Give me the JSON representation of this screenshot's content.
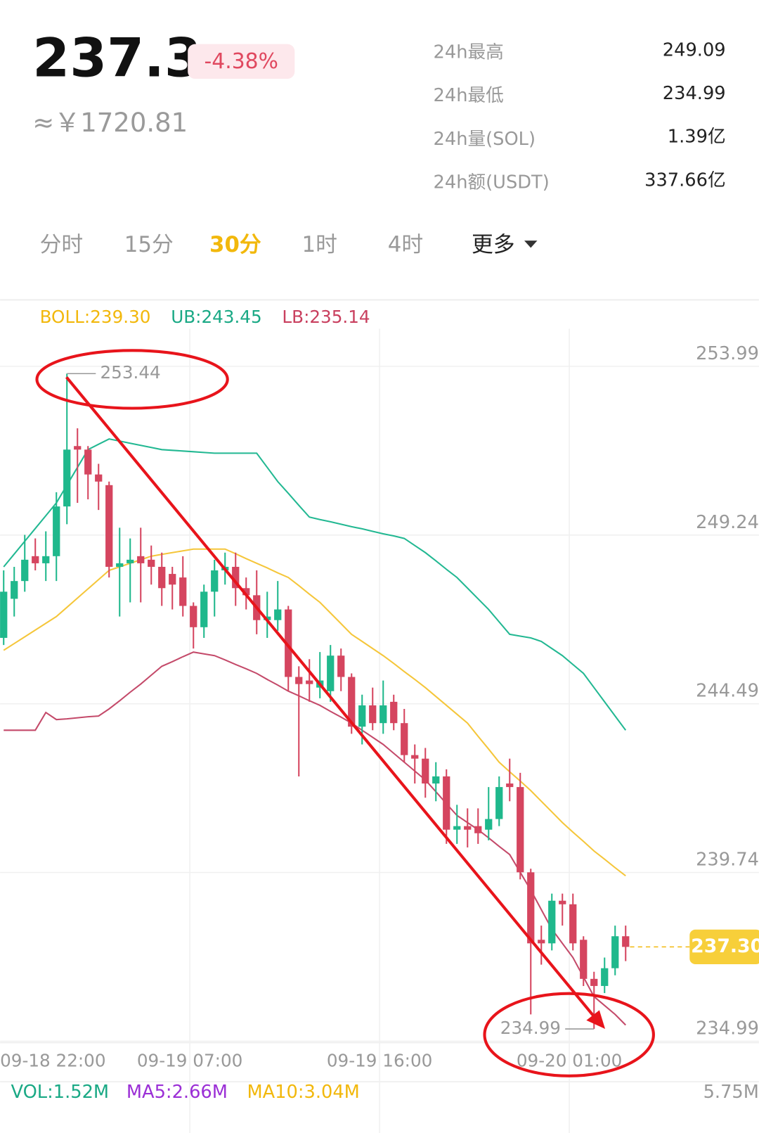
{
  "header": {
    "price": "237.3",
    "change": "-4.38%",
    "cny": "≈￥1720.81"
  },
  "stats": [
    {
      "label": "24h最高",
      "value": "249.09"
    },
    {
      "label": "24h最低",
      "value": "234.99"
    },
    {
      "label": "24h量(SOL)",
      "value": "1.39亿"
    },
    {
      "label": "24h额(USDT)",
      "value": "337.66亿"
    }
  ],
  "tabs": [
    "分时",
    "15分",
    "30分",
    "1时",
    "4时",
    "更多"
  ],
  "chart_data": {
    "type": "candlestick",
    "categories": [
      "09-18 22:00",
      null,
      null,
      null,
      null,
      null,
      null,
      null,
      null,
      null,
      null,
      null,
      null,
      null,
      null,
      null,
      null,
      null,
      "09-19 07:00",
      null,
      null,
      null,
      null,
      null,
      null,
      null,
      null,
      null,
      null,
      null,
      null,
      null,
      null,
      null,
      null,
      null,
      "09-19 16:00",
      null,
      null,
      null,
      null,
      null,
      null,
      null,
      null,
      null,
      null,
      null,
      null,
      null,
      null,
      null,
      null,
      null,
      "09-20 01:00",
      null,
      null,
      null,
      null,
      null
    ],
    "open": [
      246.0,
      247.1,
      247.6,
      248.3,
      248.1,
      248.3,
      249.7,
      251.4,
      251.3,
      250.6,
      250.3,
      248.0,
      248.1,
      248.3,
      248.2,
      248.0,
      247.8,
      247.7,
      246.9,
      246.3,
      247.3,
      247.9,
      248.0,
      247.4,
      247.2,
      246.5,
      246.5,
      246.8,
      244.9,
      244.8,
      244.6,
      244.5,
      245.5,
      244.9,
      243.5,
      244.1,
      243.6,
      244.2,
      243.6,
      242.7,
      242.6,
      241.9,
      242.1,
      240.6,
      240.7,
      240.7,
      240.6,
      240.9,
      241.9,
      241.8,
      239.4,
      237.5,
      237.4,
      238.6,
      238.5,
      237.5,
      236.4,
      236.2,
      236.7,
      237.6
    ],
    "high": [
      247.9,
      248.0,
      248.9,
      248.8,
      249.0,
      250.1,
      253.44,
      251.9,
      251.4,
      250.9,
      250.4,
      249.1,
      248.8,
      249.1,
      248.6,
      248.4,
      248.0,
      248.3,
      247.0,
      247.5,
      248.2,
      248.4,
      248.4,
      247.7,
      247.9,
      247.3,
      247.6,
      246.9,
      245.2,
      245.4,
      245.6,
      245.8,
      245.7,
      245.0,
      244.4,
      244.6,
      244.8,
      244.4,
      244.0,
      243.0,
      242.9,
      242.5,
      242.3,
      241.3,
      241.2,
      241.2,
      241.8,
      242.1,
      242.6,
      242.2,
      239.5,
      237.9,
      238.8,
      238.8,
      238.8,
      237.6,
      236.6,
      237.0,
      237.9,
      237.9
    ],
    "low": [
      245.8,
      246.6,
      247.3,
      247.9,
      247.6,
      247.6,
      249.2,
      249.8,
      249.9,
      249.6,
      247.7,
      246.6,
      247.0,
      247.0,
      247.5,
      246.9,
      246.8,
      246.6,
      245.7,
      246.0,
      246.6,
      247.5,
      246.9,
      246.8,
      246.1,
      246.0,
      246.2,
      244.5,
      242.1,
      244.2,
      244.3,
      244.2,
      244.5,
      243.3,
      243.0,
      243.4,
      243.3,
      243.4,
      242.5,
      241.9,
      241.5,
      241.4,
      240.2,
      240.2,
      240.1,
      240.2,
      240.3,
      240.7,
      241.4,
      239.2,
      235.4,
      236.8,
      237.2,
      237.9,
      237.2,
      236.2,
      234.99,
      236.0,
      236.5,
      236.9
    ],
    "close": [
      247.3,
      247.6,
      248.2,
      248.1,
      248.3,
      249.7,
      251.3,
      251.3,
      250.6,
      250.4,
      248.0,
      248.1,
      248.2,
      248.1,
      248.0,
      247.4,
      247.5,
      246.9,
      246.3,
      247.3,
      247.9,
      248.0,
      247.4,
      247.2,
      246.5,
      246.6,
      246.8,
      244.9,
      244.7,
      244.7,
      244.8,
      245.5,
      244.9,
      243.5,
      244.1,
      243.6,
      244.1,
      243.6,
      242.7,
      242.6,
      241.9,
      242.1,
      240.6,
      240.7,
      240.6,
      240.5,
      240.9,
      241.8,
      241.8,
      239.4,
      237.4,
      237.4,
      238.6,
      238.5,
      237.4,
      236.4,
      236.2,
      236.7,
      237.6,
      237.3
    ],
    "up_color": "#1fb88c",
    "down_color": "#d5455f",
    "indicators": [
      {
        "label": "BOLL:239.30",
        "color": "#f2b80c",
        "line_color": "#f5c63a",
        "values": [
          245.65,
          245.84,
          246.03,
          246.22,
          246.41,
          246.6,
          246.86,
          247.12,
          247.38,
          247.64,
          247.9,
          248.0,
          248.1,
          248.2,
          248.3,
          248.35,
          248.4,
          248.45,
          248.5,
          248.5,
          248.5,
          248.5,
          248.37,
          248.23,
          248.1,
          247.97,
          247.83,
          247.7,
          247.47,
          247.23,
          247.0,
          246.7,
          246.4,
          246.1,
          245.9,
          245.7,
          245.5,
          245.28,
          245.05,
          244.83,
          244.6,
          244.35,
          244.1,
          243.85,
          243.6,
          243.23,
          242.87,
          242.5,
          242.23,
          241.97,
          241.7,
          241.4,
          241.1,
          240.8,
          240.53,
          240.27,
          240.0,
          239.77,
          239.53,
          239.3
        ]
      },
      {
        "label": "UB:243.45",
        "color": "#1aa985",
        "line_color": "#22b892",
        "values": [
          248.0,
          248.36,
          248.72,
          249.08,
          249.44,
          249.8,
          250.3,
          250.8,
          251.3,
          251.45,
          251.6,
          251.54,
          251.48,
          251.42,
          251.36,
          251.3,
          251.28,
          251.26,
          251.24,
          251.22,
          251.2,
          251.2,
          251.2,
          251.2,
          251.2,
          250.8,
          250.4,
          250.07,
          249.73,
          249.4,
          249.33,
          249.27,
          249.2,
          249.13,
          249.07,
          249.0,
          248.93,
          248.87,
          248.8,
          248.6,
          248.4,
          248.17,
          247.93,
          247.7,
          247.4,
          247.1,
          246.8,
          246.45,
          246.1,
          246.05,
          246.0,
          245.9,
          245.7,
          245.5,
          245.25,
          245.0,
          244.6,
          244.2,
          243.8,
          243.4
        ]
      },
      {
        "label": "LB:235.14",
        "color": "#c9405f",
        "line_color": "#c44a6a",
        "values": [
          243.4,
          243.4,
          243.4,
          243.4,
          243.9,
          243.7,
          243.72,
          243.75,
          243.78,
          243.8,
          244.0,
          244.23,
          244.47,
          244.7,
          244.95,
          245.2,
          245.33,
          245.47,
          245.6,
          245.55,
          245.5,
          245.38,
          245.25,
          245.13,
          245.0,
          244.83,
          244.67,
          244.5,
          244.37,
          244.23,
          244.1,
          243.93,
          243.77,
          243.6,
          243.4,
          243.2,
          243.0,
          242.75,
          242.5,
          242.25,
          242.0,
          241.67,
          241.33,
          241.0,
          240.8,
          240.6,
          240.37,
          240.13,
          239.9,
          239.4,
          238.9,
          238.35,
          237.8,
          237.4,
          237.0,
          236.45,
          235.9,
          235.65,
          235.4,
          235.1
        ]
      }
    ],
    "ylim": [
      234.99,
      253.99
    ],
    "yticks": [
      234.99,
      239.74,
      244.49,
      249.24,
      253.99
    ],
    "grid": true,
    "annotations": {
      "high": 253.44,
      "low": 234.99,
      "last": {
        "value": 237.3,
        "label": "237.30"
      }
    }
  },
  "volume_bar": {
    "items": [
      {
        "text": "VOL:1.52M",
        "color": "#1aa985"
      },
      {
        "text": "MA5:2.66M",
        "color": "#9b2fd6"
      },
      {
        "text": "MA10:3.04M",
        "color": "#f2b80c"
      }
    ],
    "max": "5.75M"
  }
}
